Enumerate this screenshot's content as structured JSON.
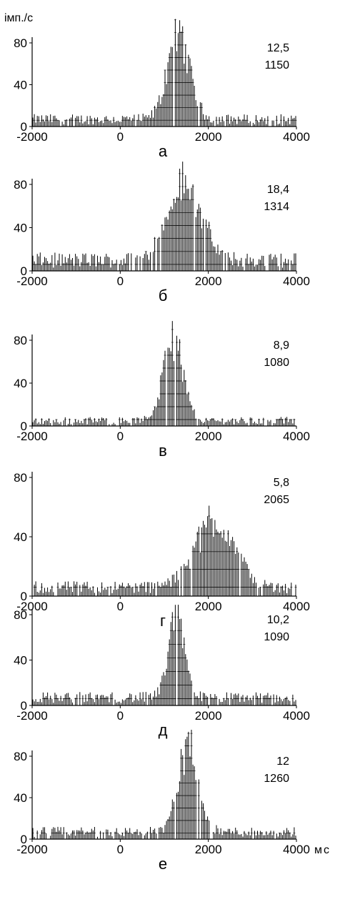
{
  "y_unit_label": "імп./с",
  "x_unit_label": "мс",
  "chart_data": [
    {
      "type": "bar",
      "panel_label": "а",
      "stat_line1": "12,5",
      "stat_line2": "1150",
      "xlim": [
        -2000,
        4000
      ],
      "ylim": [
        0,
        80
      ],
      "yticks": [
        "0",
        "40",
        "80"
      ],
      "xticks": [
        "-2000",
        "0",
        "2000",
        "4000"
      ],
      "peak": 100,
      "peak_time": 1330,
      "width": 250,
      "baseline": 7
    },
    {
      "type": "bar",
      "panel_label": "б",
      "stat_line1": "18,4",
      "stat_line2": "1314",
      "xlim": [
        -2000,
        4000
      ],
      "ylim": [
        0,
        80
      ],
      "yticks": [
        "0",
        "40",
        "80"
      ],
      "xticks": [
        "-2000",
        "0",
        "2000",
        "4000"
      ],
      "peak": 85,
      "peak_time": 1450,
      "width": 380,
      "baseline": 10
    },
    {
      "type": "bar",
      "panel_label": "в",
      "stat_line1": "8,9",
      "stat_line2": "1080",
      "xlim": [
        -2000,
        4000
      ],
      "ylim": [
        0,
        80
      ],
      "yticks": [
        "0",
        "40",
        "80"
      ],
      "xticks": [
        "-2000",
        "0",
        "2000",
        "4000"
      ],
      "peak": 93,
      "peak_time": 1200,
      "width": 220,
      "baseline": 5
    },
    {
      "type": "bar",
      "panel_label": "г",
      "stat_line1": "5,8",
      "stat_line2": "2065",
      "xlim": [
        -2000,
        4000
      ],
      "ylim": [
        0,
        80
      ],
      "yticks": [
        "0",
        "40",
        "80"
      ],
      "xticks": [
        "-2000",
        "0",
        "2000",
        "4000"
      ],
      "peak": 55,
      "peak_time": 2150,
      "width": 450,
      "baseline": 6
    },
    {
      "type": "bar",
      "panel_label": "д",
      "stat_line1": "10,2",
      "stat_line2": "1090",
      "xlim": [
        -2000,
        4000
      ],
      "ylim": [
        0,
        80
      ],
      "yticks": [
        "0",
        "40",
        "80"
      ],
      "xticks": [
        "-2000",
        "0",
        "2000",
        "4000"
      ],
      "peak": 80,
      "peak_time": 1280,
      "width": 190,
      "baseline": 7
    },
    {
      "type": "bar",
      "panel_label": "е",
      "stat_line1": "12",
      "stat_line2": "1260",
      "xlim": [
        -2000,
        4000
      ],
      "ylim": [
        0,
        80
      ],
      "yticks": [
        "0",
        "40",
        "80"
      ],
      "xticks": [
        "-2000",
        "0",
        "2000",
        "4000"
      ],
      "peak": 100,
      "peak_time": 1550,
      "width": 230,
      "baseline": 7
    }
  ]
}
